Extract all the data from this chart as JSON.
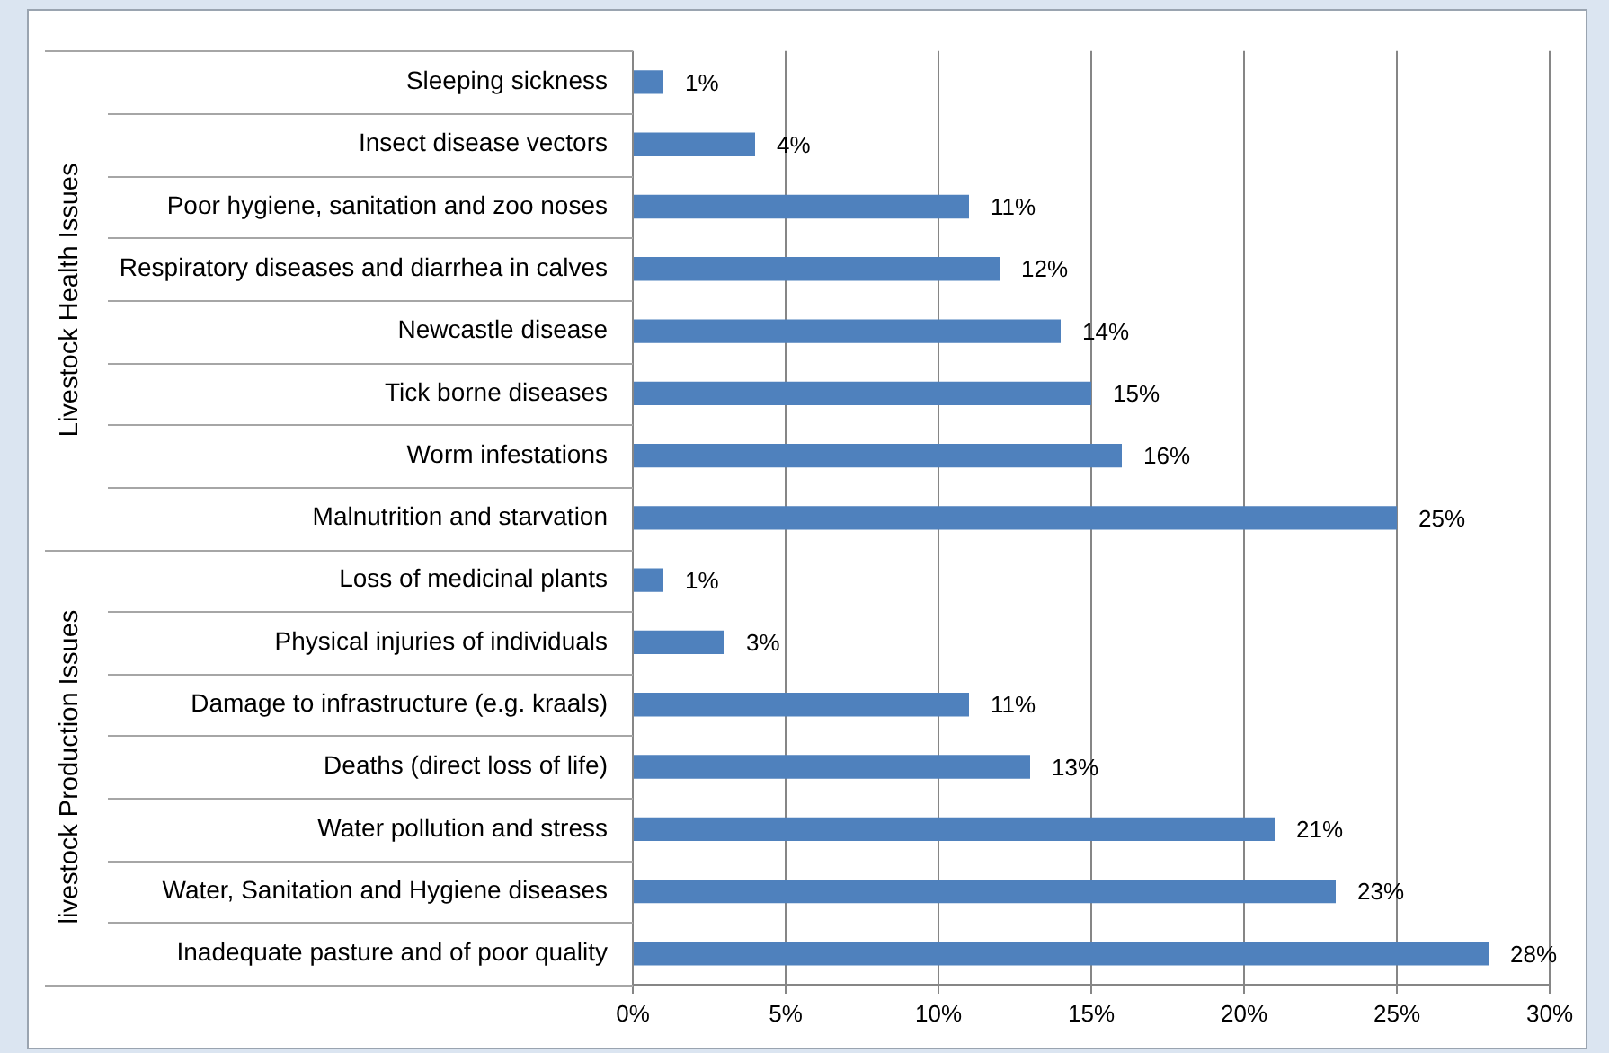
{
  "chart_data": {
    "type": "bar",
    "orientation": "horizontal",
    "categories": [
      "Sleeping sickness",
      "Insect disease vectors",
      "Poor hygiene, sanitation and zoo noses",
      "Respiratory diseases and diarrhea in calves",
      "Newcastle disease",
      "Tick borne diseases",
      "Worm infestations",
      "Malnutrition and starvation",
      "Loss of medicinal plants",
      "Physical injuries of individuals",
      "Damage to infrastructure (e.g. kraals)",
      "Deaths (direct loss of life)",
      "Water pollution and stress",
      "Water, Sanitation and Hygiene diseases",
      "Inadequate pasture and of poor quality"
    ],
    "values": [
      1,
      4,
      11,
      12,
      14,
      15,
      16,
      25,
      1,
      3,
      11,
      13,
      21,
      23,
      28
    ],
    "value_labels": [
      "1%",
      "4%",
      "11%",
      "12%",
      "14%",
      "15%",
      "16%",
      "25%",
      "1%",
      "3%",
      "11%",
      "13%",
      "21%",
      "23%",
      "28%"
    ],
    "color": "#4f81bd",
    "xlim": [
      0,
      30
    ],
    "xticks": [
      {
        "value": 0,
        "label": "0%"
      },
      {
        "value": 5,
        "label": "5%"
      },
      {
        "value": 10,
        "label": "10%"
      },
      {
        "value": 15,
        "label": "15%"
      },
      {
        "value": 20,
        "label": "20%"
      },
      {
        "value": 25,
        "label": "25%"
      },
      {
        "value": 30,
        "label": "30%"
      }
    ],
    "grid": "x",
    "annotations": [
      "Livestock Health Issues",
      "livestock Production Issues"
    ]
  }
}
